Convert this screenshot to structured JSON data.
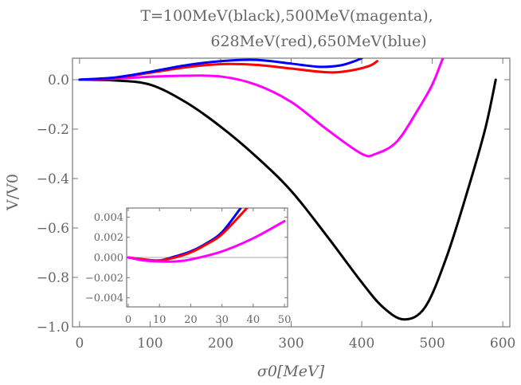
{
  "chart_data": [
    {
      "type": "line",
      "title_lines": [
        "T=100MeV(black),500MeV(magenta),",
        "628MeV(red),650MeV(blue)"
      ],
      "xlabel": "σ0[MeV]",
      "ylabel": "V/V0",
      "xlim": [
        -10,
        610
      ],
      "ylim": [
        -1.0,
        0.087
      ],
      "xticks": [
        0,
        100,
        200,
        300,
        400,
        500,
        600
      ],
      "yticks": [
        0.0,
        -0.2,
        -0.4,
        -0.6,
        -0.8,
        -1.0
      ],
      "ytick_labels": [
        "0.0",
        "−0.2",
        "−0.4",
        "−0.6",
        "−0.8",
        "−1.0"
      ],
      "grid": false,
      "series": [
        {
          "color": "#000000",
          "points": [
            [
              0,
              0
            ],
            [
              50,
              -0.003
            ],
            [
              100,
              -0.02
            ],
            [
              150,
              -0.09
            ],
            [
              200,
              -0.19
            ],
            [
              250,
              -0.31
            ],
            [
              300,
              -0.45
            ],
            [
              350,
              -0.63
            ],
            [
              400,
              -0.82
            ],
            [
              430,
              -0.92
            ],
            [
              460,
              -0.97
            ],
            [
              490,
              -0.92
            ],
            [
              520,
              -0.72
            ],
            [
              550,
              -0.45
            ],
            [
              575,
              -0.2
            ],
            [
              590,
              0
            ]
          ]
        },
        {
          "color": "#ff00ff",
          "points": [
            [
              0,
              0
            ],
            [
              50,
              0.004
            ],
            [
              100,
              0.012
            ],
            [
              150,
              0.016
            ],
            [
              200,
              0.013
            ],
            [
              250,
              -0.02
            ],
            [
              300,
              -0.09
            ],
            [
              350,
              -0.2
            ],
            [
              400,
              -0.3
            ],
            [
              420,
              -0.3
            ],
            [
              450,
              -0.25
            ],
            [
              480,
              -0.12
            ],
            [
              500,
              -0.02
            ],
            [
              515,
              0.087
            ]
          ]
        },
        {
          "color": "#ff0000",
          "points": [
            [
              0,
              0
            ],
            [
              50,
              0.008
            ],
            [
              100,
              0.028
            ],
            [
              150,
              0.05
            ],
            [
              200,
              0.063
            ],
            [
              250,
              0.06
            ],
            [
              300,
              0.045
            ],
            [
              350,
              0.03
            ],
            [
              380,
              0.035
            ],
            [
              410,
              0.055
            ],
            [
              422,
              0.075
            ]
          ]
        },
        {
          "color": "#0000ff",
          "points": [
            [
              0,
              0
            ],
            [
              50,
              0.009
            ],
            [
              100,
              0.032
            ],
            [
              150,
              0.058
            ],
            [
              200,
              0.075
            ],
            [
              250,
              0.08
            ],
            [
              300,
              0.065
            ],
            [
              340,
              0.052
            ],
            [
              370,
              0.058
            ],
            [
              390,
              0.075
            ],
            [
              400,
              0.087
            ]
          ]
        }
      ]
    },
    {
      "type": "line",
      "xlim": [
        -0.5,
        51
      ],
      "ylim": [
        -0.0049,
        0.0049
      ],
      "xticks": [
        0,
        10,
        20,
        30,
        40,
        50
      ],
      "yticks": [
        0.004,
        0.002,
        0.0,
        -0.002,
        -0.004
      ],
      "ytick_labels": [
        "0.004",
        "0.002",
        "0.000",
        "−0.002",
        "−0.004"
      ],
      "zero_line": true,
      "series": [
        {
          "color": "#0000ff",
          "points": [
            [
              0,
              0
            ],
            [
              5,
              -0.0002
            ],
            [
              10,
              -0.0003
            ],
            [
              15,
              0.0001
            ],
            [
              20,
              0.0006
            ],
            [
              25,
              0.0014
            ],
            [
              30,
              0.0025
            ],
            [
              36,
              0.0049
            ]
          ]
        },
        {
          "color": "#ff0000",
          "points": [
            [
              0,
              0
            ],
            [
              5,
              -0.0002
            ],
            [
              10,
              -0.0003
            ],
            [
              15,
              0.0
            ],
            [
              20,
              0.0005
            ],
            [
              25,
              0.0013
            ],
            [
              30,
              0.0023
            ],
            [
              38,
              0.0049
            ]
          ]
        },
        {
          "color": "#ff00ff",
          "points": [
            [
              0,
              0
            ],
            [
              5,
              -0.0003
            ],
            [
              10,
              -0.0004
            ],
            [
              15,
              -0.0004
            ],
            [
              20,
              -0.0002
            ],
            [
              30,
              0.0006
            ],
            [
              40,
              0.0019
            ],
            [
              50,
              0.0036
            ]
          ]
        }
      ]
    }
  ]
}
